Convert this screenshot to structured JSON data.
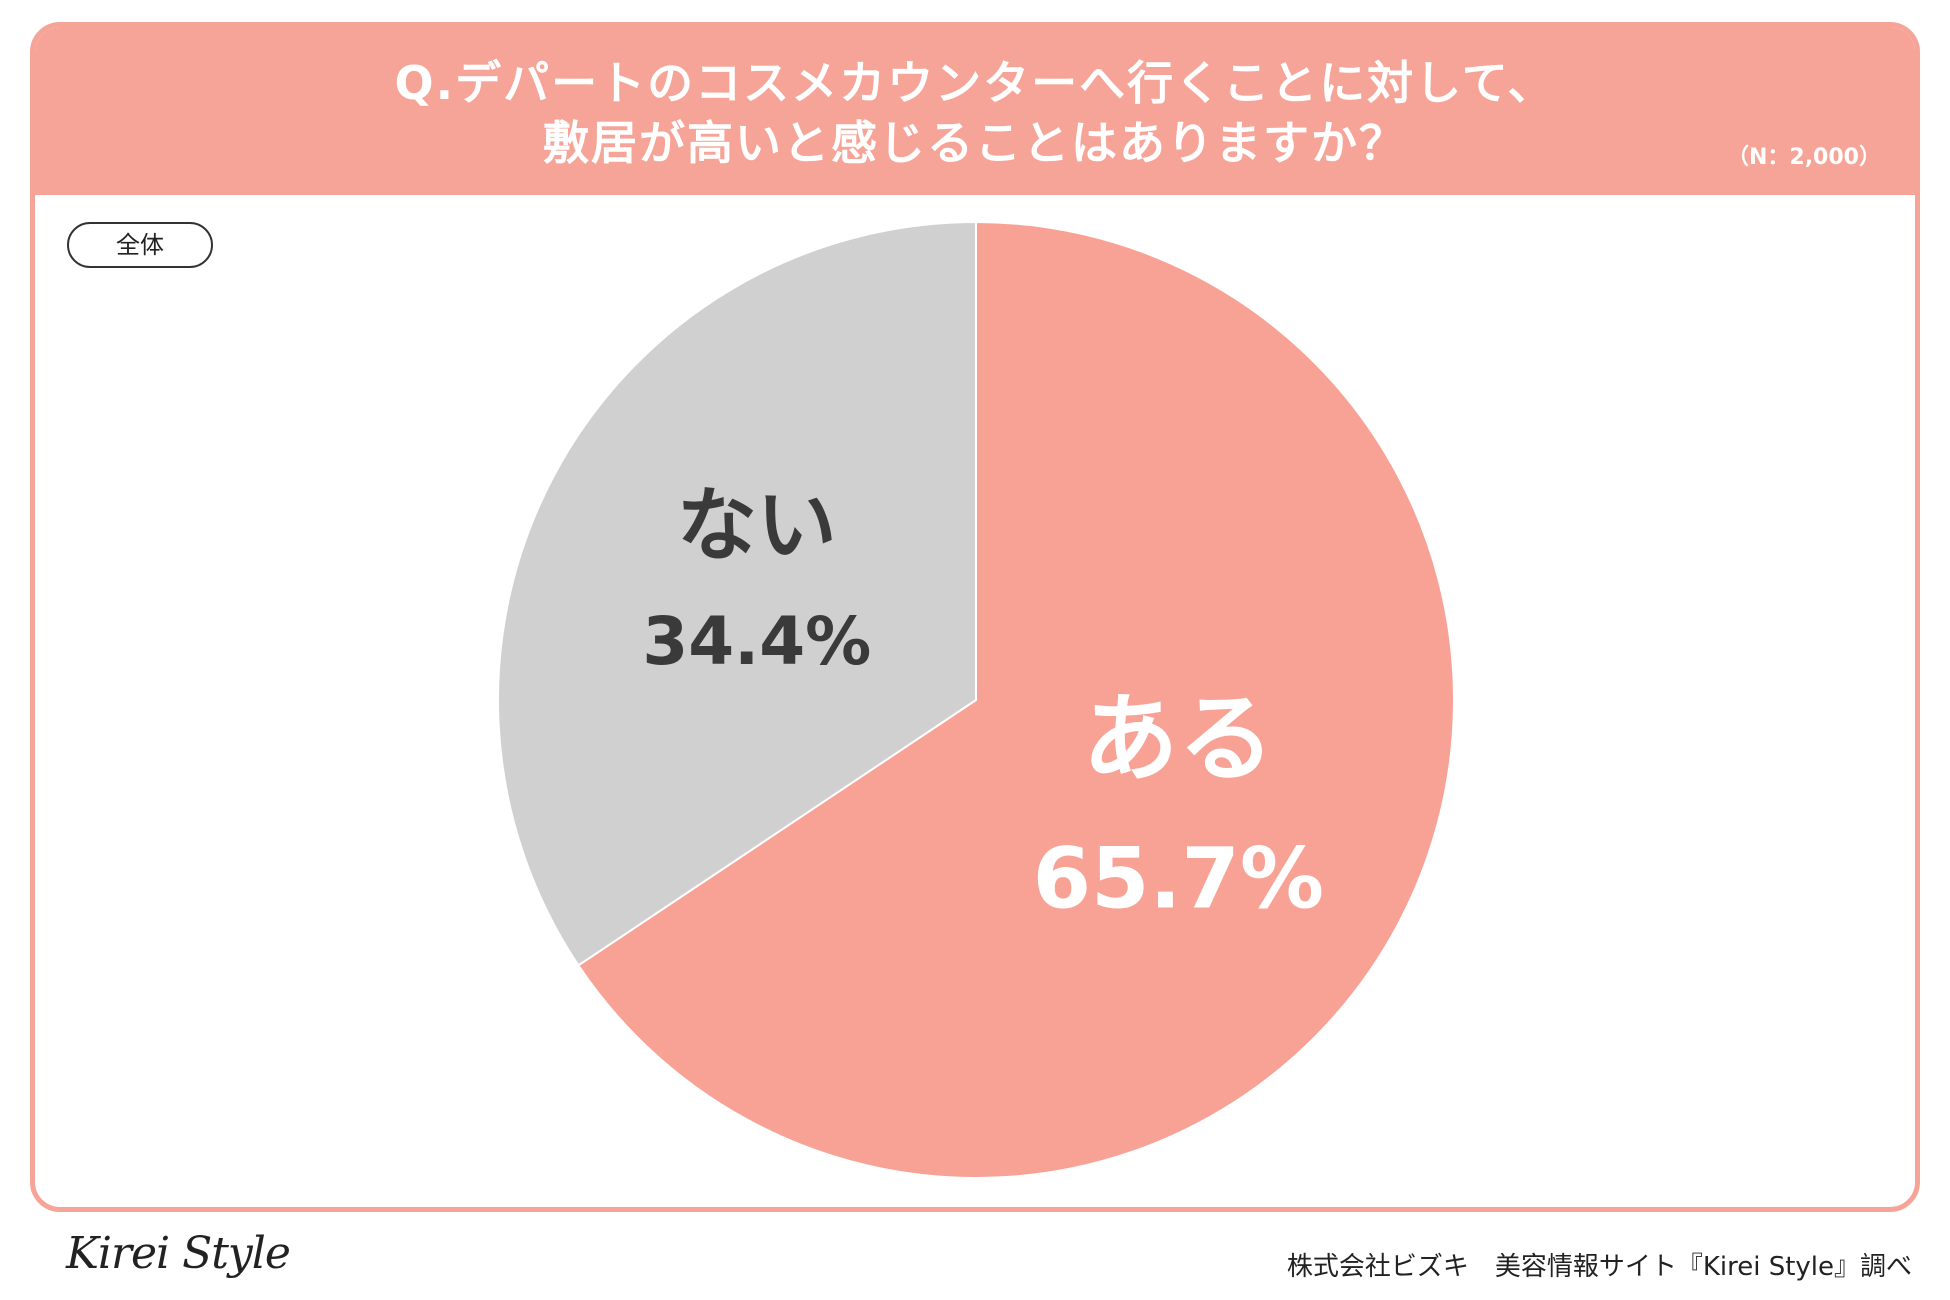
{
  "header": {
    "title_line1": "Q.デパートのコスメカウンターへ行くことに対して、",
    "title_line2": "敷居が高いと感じることはありますか？",
    "sample_size": "（N：2,000）"
  },
  "segment_label": "全体",
  "footer": {
    "logo": "Kirei Style",
    "source": "株式会社ビズキ　美容情報サイト『Kirei Style』調べ"
  },
  "colors": {
    "accent": "#f6a497",
    "slice_yes": "#f8a195",
    "slice_no": "#d0d0d0",
    "label_yes": "#ffffff",
    "label_no": "#3a3a3a"
  },
  "chart_data": {
    "type": "pie",
    "categories": [
      "ある",
      "ない"
    ],
    "values": [
      65.7,
      34.4
    ],
    "value_labels": [
      "65.7%",
      "34.4%"
    ],
    "start_angle_deg": 0,
    "direction": "clockwise",
    "legend": "none"
  }
}
